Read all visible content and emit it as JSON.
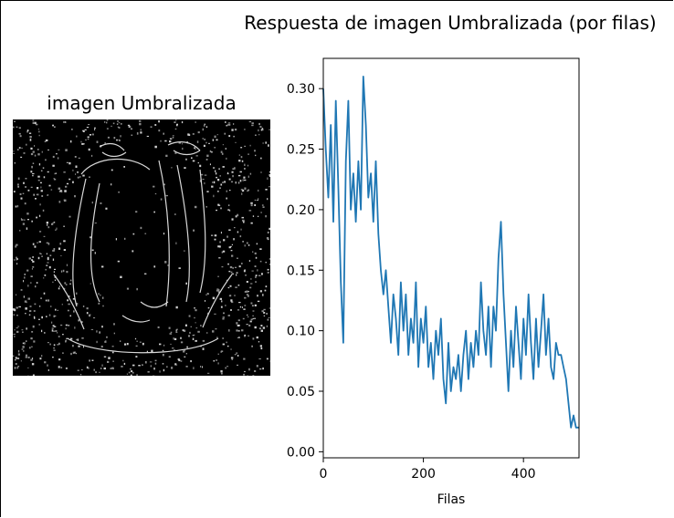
{
  "left_panel": {
    "title": "imagen Umbralizada"
  },
  "chart_data": {
    "type": "line",
    "title": "Respuesta de imagen Umbralizada (por filas)",
    "xlabel": "Filas",
    "ylabel": "",
    "xlim": [
      0,
      511
    ],
    "ylim": [
      -0.005,
      0.325
    ],
    "x_ticks": [
      0,
      200,
      400
    ],
    "y_ticks": [
      0.0,
      0.05,
      0.1,
      0.15,
      0.2,
      0.25,
      0.3
    ],
    "x_tick_labels": [
      "0",
      "200",
      "400"
    ],
    "y_tick_labels": [
      "0.00",
      "0.05",
      "0.10",
      "0.15",
      "0.20",
      "0.25",
      "0.30"
    ],
    "grid": false,
    "series": [
      {
        "color": "#1f77b4",
        "x": [
          0,
          5,
          10,
          15,
          20,
          25,
          30,
          35,
          40,
          45,
          50,
          55,
          60,
          65,
          70,
          75,
          80,
          85,
          90,
          95,
          100,
          105,
          110,
          115,
          120,
          125,
          130,
          135,
          140,
          145,
          150,
          155,
          160,
          165,
          170,
          175,
          180,
          185,
          190,
          195,
          200,
          205,
          210,
          215,
          220,
          225,
          230,
          235,
          240,
          245,
          250,
          255,
          260,
          265,
          270,
          275,
          280,
          285,
          290,
          295,
          300,
          305,
          310,
          315,
          320,
          325,
          330,
          335,
          340,
          345,
          350,
          355,
          360,
          365,
          370,
          375,
          380,
          385,
          390,
          395,
          400,
          405,
          410,
          415,
          420,
          425,
          430,
          435,
          440,
          445,
          450,
          455,
          460,
          465,
          470,
          475,
          480,
          485,
          490,
          495,
          500,
          505,
          510
        ],
        "y": [
          0.3,
          0.25,
          0.21,
          0.27,
          0.19,
          0.29,
          0.22,
          0.14,
          0.09,
          0.24,
          0.29,
          0.2,
          0.23,
          0.19,
          0.24,
          0.2,
          0.31,
          0.27,
          0.21,
          0.23,
          0.19,
          0.24,
          0.18,
          0.15,
          0.13,
          0.15,
          0.12,
          0.09,
          0.13,
          0.11,
          0.08,
          0.14,
          0.1,
          0.13,
          0.08,
          0.11,
          0.09,
          0.14,
          0.07,
          0.11,
          0.09,
          0.12,
          0.07,
          0.09,
          0.06,
          0.1,
          0.08,
          0.11,
          0.06,
          0.04,
          0.09,
          0.05,
          0.07,
          0.06,
          0.08,
          0.05,
          0.08,
          0.1,
          0.06,
          0.09,
          0.07,
          0.1,
          0.08,
          0.14,
          0.1,
          0.08,
          0.12,
          0.07,
          0.12,
          0.1,
          0.16,
          0.19,
          0.13,
          0.09,
          0.05,
          0.1,
          0.07,
          0.12,
          0.09,
          0.06,
          0.11,
          0.08,
          0.13,
          0.09,
          0.06,
          0.11,
          0.07,
          0.1,
          0.13,
          0.08,
          0.11,
          0.07,
          0.06,
          0.09,
          0.08,
          0.08,
          0.07,
          0.06,
          0.04,
          0.02,
          0.03,
          0.02,
          0.02
        ]
      }
    ]
  }
}
